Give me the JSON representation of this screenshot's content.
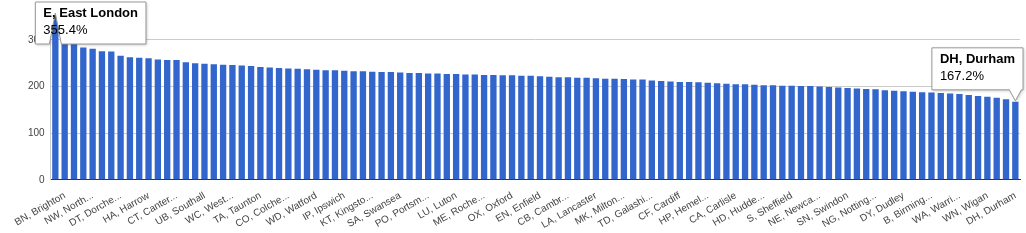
{
  "chart_data": {
    "type": "bar",
    "categories": [
      null,
      "BN, Brighton",
      null,
      null,
      "NW, North...",
      null,
      null,
      "DT, Dorche...",
      null,
      null,
      "HA, Harrow",
      null,
      null,
      "CT, Canter...",
      null,
      null,
      "UB, Southall",
      null,
      null,
      "WC, West...",
      null,
      null,
      "TA, Taunton",
      null,
      null,
      "CO, Colche...",
      null,
      null,
      "WD, Watford",
      null,
      null,
      "IP, Ipswich",
      null,
      null,
      "KT, Kingsto...",
      null,
      null,
      "SA, Swansea",
      null,
      null,
      "PO, Portsm...",
      null,
      null,
      "LU, Luton",
      null,
      null,
      "ME, Roche...",
      null,
      null,
      "OX, Oxford",
      null,
      null,
      "EN, Enfield",
      null,
      null,
      "CB, Cambr...",
      null,
      null,
      "LA, Lancaster",
      null,
      null,
      "MK, Milton...",
      null,
      null,
      "TD, Galashi...",
      null,
      null,
      "CF, Cardiff",
      null,
      null,
      "HP, Hemel...",
      null,
      null,
      "CA, Carlisle",
      null,
      null,
      "HD, Hudde...",
      null,
      null,
      "S, Sheffield",
      null,
      null,
      "NE, Newca...",
      null,
      null,
      "SN, Swindon",
      null,
      null,
      "NG, Notting...",
      null,
      null,
      "DY, Dudley",
      null,
      null,
      "B, Birming...",
      null,
      null,
      "WA, Warri...",
      null,
      null,
      "WN, Wigan",
      null,
      null,
      "DH, Durham"
    ],
    "values": [
      355.4,
      322,
      295,
      284,
      281,
      276,
      275,
      266,
      263,
      262,
      261,
      258,
      257,
      257,
      252,
      250,
      249,
      248,
      247,
      246,
      245,
      244,
      242,
      241,
      240,
      239,
      238,
      237,
      236,
      235,
      235,
      234,
      233,
      233,
      232,
      231,
      231,
      230,
      229,
      229,
      228,
      228,
      227,
      227,
      226,
      226,
      225,
      225,
      224,
      224,
      223,
      223,
      222,
      221,
      220,
      220,
      219,
      219,
      218,
      217,
      217,
      216,
      215,
      215,
      213,
      212,
      211,
      210,
      210,
      209,
      208,
      207,
      206,
      205,
      205,
      204,
      203,
      203,
      202,
      202,
      201,
      201,
      200,
      199,
      198,
      197,
      196,
      195,
      194,
      192,
      191,
      190,
      189,
      188,
      187,
      186,
      185,
      184,
      182,
      180,
      178,
      176,
      173,
      167.2
    ],
    "color": "#3366cc",
    "ylim": [
      0,
      360
    ],
    "yticks": [
      0,
      100,
      200,
      300
    ],
    "grid": true,
    "annotations": [
      {
        "index": 0,
        "text": [
          "E, East London",
          "355.4%"
        ]
      },
      {
        "index": 103,
        "text": [
          "DH, Durham",
          "167.2%"
        ]
      }
    ]
  }
}
